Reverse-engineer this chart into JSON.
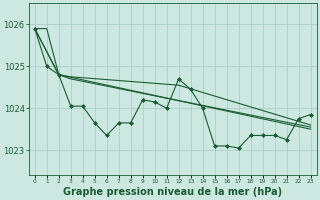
{
  "background_color": "#cce8e0",
  "grid_color": "#aacfc8",
  "line_color": "#1a5c32",
  "marker_color": "#1a5c32",
  "xlabel": "Graphe pression niveau de la mer (hPa)",
  "xlabel_fontsize": 7,
  "ytick_labels": [
    "1026",
    "1025",
    "1024",
    "1023"
  ],
  "yticks": [
    1026,
    1025,
    1024,
    1023
  ],
  "xtick_labels": [
    "0",
    "1",
    "2",
    "3",
    "4",
    "5",
    "6",
    "7",
    "8",
    "9",
    "10",
    "11",
    "12",
    "13",
    "14",
    "15",
    "16",
    "17",
    "18",
    "19",
    "20",
    "21",
    "22",
    "23"
  ],
  "xticks": [
    0,
    1,
    2,
    3,
    4,
    5,
    6,
    7,
    8,
    9,
    10,
    11,
    12,
    13,
    14,
    15,
    16,
    17,
    18,
    19,
    20,
    21,
    22,
    23
  ],
  "ylim": [
    1022.4,
    1026.5
  ],
  "xlim": [
    -0.5,
    23.5
  ],
  "series": [
    {
      "x": [
        0,
        1,
        2,
        3,
        4,
        5,
        6,
        7,
        8,
        9,
        10,
        11,
        12,
        13,
        14,
        15,
        16,
        17,
        18,
        19,
        20,
        21,
        22,
        23
      ],
      "y": [
        1025.9,
        1025.0,
        1024.8,
        1024.05,
        1024.05,
        1023.65,
        1023.35,
        1023.65,
        1023.65,
        1024.2,
        1024.15,
        1024.0,
        1024.7,
        1024.45,
        1024.0,
        1023.1,
        1023.1,
        1023.05,
        1023.35,
        1023.35,
        1023.35,
        1023.25,
        1023.75,
        1023.85
      ],
      "marker": true,
      "linewidth": 0.8
    },
    {
      "x": [
        0,
        2,
        3,
        12,
        23
      ],
      "y": [
        1025.9,
        1024.8,
        1024.75,
        1024.55,
        1023.6
      ],
      "marker": false,
      "linewidth": 0.8
    },
    {
      "x": [
        0,
        2,
        3,
        23
      ],
      "y": [
        1025.9,
        1024.8,
        1024.7,
        1023.55
      ],
      "marker": false,
      "linewidth": 0.8
    },
    {
      "x": [
        0,
        1,
        2,
        23
      ],
      "y": [
        1025.9,
        1025.9,
        1024.8,
        1023.5
      ],
      "marker": false,
      "linewidth": 0.8
    }
  ]
}
